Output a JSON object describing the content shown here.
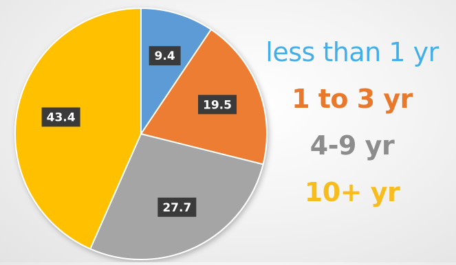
{
  "chart_data": {
    "type": "pie",
    "start_angle_deg": 0,
    "direction": "clockwise",
    "slices": [
      {
        "label": "less than 1 yr",
        "value": 9.4,
        "color": "#5B9BD5",
        "data_label": "9.4"
      },
      {
        "label": "1 to 3 yr",
        "value": 19.5,
        "color": "#ED7D31",
        "data_label": "19.5"
      },
      {
        "label": "4-9 yr",
        "value": 27.7,
        "color": "#A5A5A5",
        "data_label": "27.7"
      },
      {
        "label": "10+ yr",
        "value": 43.4,
        "color": "#FFC000",
        "data_label": "43.4"
      }
    ],
    "data_label_style": {
      "background": "#3a3a3a",
      "text_color": "#ffffff"
    },
    "legend": {
      "placement": "right",
      "entries": [
        {
          "text": "less than 1 yr",
          "color": "#44AEE8",
          "bold": false
        },
        {
          "text": "1 to 3 yr",
          "color": "#E8782C",
          "bold": true
        },
        {
          "text": "4-9 yr",
          "color": "#8C8C8C",
          "bold": true
        },
        {
          "text": "10+ yr",
          "color": "#F7BD1E",
          "bold": true
        }
      ]
    }
  }
}
